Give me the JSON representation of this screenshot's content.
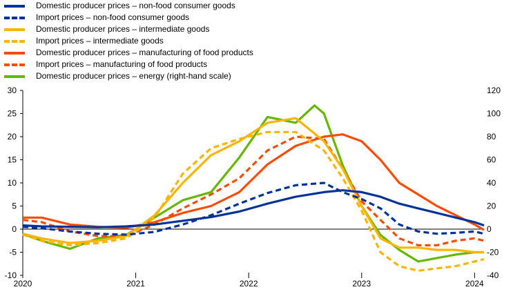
{
  "chart_data": {
    "type": "line",
    "title": "",
    "xlabel": "",
    "ylabel": "",
    "x_start": "2020-01",
    "x_end": "2024-02",
    "ylim_left": [
      -10,
      30
    ],
    "ylim_right": [
      -40,
      120
    ],
    "x_ticks": [
      "2020",
      "2021",
      "2022",
      "2023",
      "2024"
    ],
    "y_ticks_left": [
      "30",
      "25",
      "20",
      "15",
      "10",
      "5",
      "0",
      "-5",
      "-10"
    ],
    "y_ticks_right": [
      "120",
      "100",
      "80",
      "60",
      "40",
      "20",
      "0",
      "-20",
      "-40"
    ],
    "grid": false,
    "legend_position": "top-left",
    "series": [
      {
        "name": "Domestic producer prices – non-food consumer goods",
        "color": "#003299",
        "dash": false,
        "axis": "left",
        "x": [
          "2020-01",
          "2020-03",
          "2020-06",
          "2020-09",
          "2020-12",
          "2021-03",
          "2021-06",
          "2021-09",
          "2021-12",
          "2022-03",
          "2022-06",
          "2022-09",
          "2022-11",
          "2023-01",
          "2023-03",
          "2023-05",
          "2023-07",
          "2023-09",
          "2023-11",
          "2024-01",
          "2024-02"
        ],
        "values": [
          0.8,
          0.6,
          0.5,
          0.4,
          0.6,
          1.0,
          1.8,
          2.6,
          3.8,
          5.5,
          7.0,
          8.0,
          8.4,
          8.0,
          7.0,
          5.5,
          4.5,
          3.5,
          2.5,
          1.5,
          0.8
        ]
      },
      {
        "name": "Import prices – non-food consumer goods",
        "color": "#003299",
        "dash": true,
        "axis": "left",
        "x": [
          "2020-01",
          "2020-03",
          "2020-06",
          "2020-09",
          "2020-12",
          "2021-03",
          "2021-06",
          "2021-09",
          "2021-12",
          "2022-03",
          "2022-06",
          "2022-09",
          "2022-11",
          "2023-01",
          "2023-03",
          "2023-05",
          "2023-07",
          "2023-09",
          "2023-11",
          "2024-01",
          "2024-02"
        ],
        "values": [
          0.5,
          0.2,
          -0.5,
          -1.0,
          -1.2,
          -0.6,
          1.0,
          3.0,
          5.5,
          7.8,
          9.5,
          10.0,
          8.0,
          6.5,
          4.5,
          1.0,
          -0.5,
          -1.0,
          -0.8,
          -0.5,
          -1.0
        ]
      },
      {
        "name": "Domestic producer prices – intermediate goods",
        "color": "#FFB400",
        "dash": false,
        "axis": "left",
        "x": [
          "2020-01",
          "2020-03",
          "2020-06",
          "2020-09",
          "2020-12",
          "2021-03",
          "2021-06",
          "2021-09",
          "2021-12",
          "2022-03",
          "2022-06",
          "2022-09",
          "2022-11",
          "2023-01",
          "2023-03",
          "2023-05",
          "2023-07",
          "2023-09",
          "2023-11",
          "2024-01",
          "2024-02"
        ],
        "values": [
          -1.0,
          -2.0,
          -3.0,
          -2.5,
          -1.5,
          3.0,
          10.0,
          16.0,
          19.0,
          23.0,
          24.0,
          19.0,
          13.0,
          5.0,
          -2.0,
          -4.0,
          -4.0,
          -4.5,
          -4.5,
          -5.0,
          -5.0
        ]
      },
      {
        "name": "Import prices – intermediate goods",
        "color": "#FFB400",
        "dash": true,
        "axis": "left",
        "x": [
          "2020-01",
          "2020-03",
          "2020-06",
          "2020-09",
          "2020-12",
          "2021-03",
          "2021-06",
          "2021-09",
          "2021-12",
          "2022-03",
          "2022-06",
          "2022-09",
          "2022-11",
          "2023-01",
          "2023-03",
          "2023-05",
          "2023-07",
          "2023-09",
          "2023-11",
          "2024-01",
          "2024-02"
        ],
        "values": [
          -1.2,
          -2.5,
          -3.5,
          -3.0,
          -2.0,
          2.5,
          12.0,
          17.5,
          19.5,
          21.0,
          21.0,
          17.0,
          11.0,
          4.0,
          -5.0,
          -8.0,
          -9.0,
          -8.5,
          -8.0,
          -7.0,
          -6.5
        ]
      },
      {
        "name": "Domestic producer prices – manufacturing of food products",
        "color": "#FF4B00",
        "dash": false,
        "axis": "left",
        "x": [
          "2020-01",
          "2020-03",
          "2020-06",
          "2020-09",
          "2020-12",
          "2021-03",
          "2021-06",
          "2021-09",
          "2021-12",
          "2022-03",
          "2022-06",
          "2022-09",
          "2022-11",
          "2023-01",
          "2023-03",
          "2023-05",
          "2023-07",
          "2023-09",
          "2023-11",
          "2024-01",
          "2024-02"
        ],
        "values": [
          2.5,
          2.5,
          1.0,
          0.5,
          0.3,
          1.5,
          3.5,
          5.0,
          8.0,
          14.0,
          18.0,
          20.0,
          20.5,
          19.0,
          15.0,
          10.0,
          7.5,
          5.0,
          3.0,
          1.0,
          -0.2
        ]
      },
      {
        "name": "Import prices – manufacturing of food products",
        "color": "#FF4B00",
        "dash": true,
        "axis": "left",
        "x": [
          "2020-01",
          "2020-03",
          "2020-06",
          "2020-09",
          "2020-12",
          "2021-03",
          "2021-06",
          "2021-09",
          "2021-12",
          "2022-03",
          "2022-06",
          "2022-09",
          "2022-11",
          "2023-01",
          "2023-03",
          "2023-05",
          "2023-07",
          "2023-09",
          "2023-11",
          "2024-01",
          "2024-02"
        ],
        "values": [
          2.0,
          1.5,
          -0.5,
          -1.5,
          -1.5,
          1.0,
          4.5,
          7.5,
          11.0,
          17.0,
          20.0,
          19.5,
          13.0,
          6.0,
          2.0,
          -2.0,
          -3.5,
          -3.5,
          -2.5,
          -2.0,
          -2.5
        ]
      },
      {
        "name": "Domestic producer prices – energy (right-hand scale)",
        "color": "#65B800",
        "dash": false,
        "axis": "right",
        "x": [
          "2020-01",
          "2020-03",
          "2020-06",
          "2020-09",
          "2020-12",
          "2021-03",
          "2021-06",
          "2021-09",
          "2021-12",
          "2022-03",
          "2022-06",
          "2022-08",
          "2022-09",
          "2022-11",
          "2023-01",
          "2023-03",
          "2023-05",
          "2023-07",
          "2023-09",
          "2023-11",
          "2024-01",
          "2024-02"
        ],
        "values": [
          -4.0,
          -10.0,
          -17.0,
          -8.0,
          -5.0,
          10.0,
          25.0,
          32.0,
          62.0,
          97.0,
          92.0,
          107.0,
          100.0,
          55.0,
          20.0,
          -5.0,
          -18.0,
          -28.0,
          -25.0,
          -22.0,
          -20.0,
          -20.0
        ]
      }
    ]
  }
}
